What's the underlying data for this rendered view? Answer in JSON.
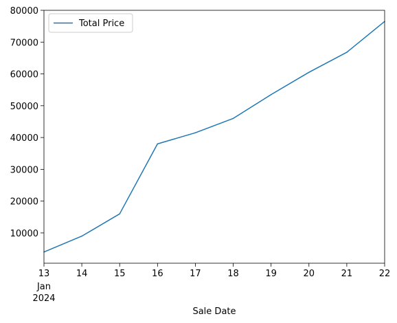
{
  "chart_data": {
    "type": "line",
    "x": [
      "2024-01-13",
      "2024-01-14",
      "2024-01-15",
      "2024-01-16",
      "2024-01-17",
      "2024-01-18",
      "2024-01-19",
      "2024-01-20",
      "2024-01-21",
      "2024-01-22"
    ],
    "series": [
      {
        "name": "Total Price",
        "values": [
          4000,
          9000,
          16000,
          38000,
          41500,
          46000,
          53500,
          60500,
          66800,
          76500
        ],
        "color": "#1f77b4"
      }
    ],
    "xlabel": "Sale Date",
    "ylabel": "",
    "title": "",
    "x_tick_labels": [
      "13",
      "14",
      "15",
      "16",
      "17",
      "18",
      "19",
      "20",
      "21",
      "22"
    ],
    "x_first_tick_sublabel_month": "Jan",
    "x_first_tick_sublabel_year": "2024",
    "y_tick_labels": [
      "10000",
      "20000",
      "30000",
      "40000",
      "50000",
      "60000",
      "70000",
      "80000"
    ],
    "yticks": [
      10000,
      20000,
      30000,
      40000,
      50000,
      60000,
      70000,
      80000
    ],
    "ylim": [
      475,
      80000
    ],
    "xlim": [
      "2024-01-13",
      "2024-01-22"
    ],
    "grid": false,
    "legend_position": "upper left"
  }
}
